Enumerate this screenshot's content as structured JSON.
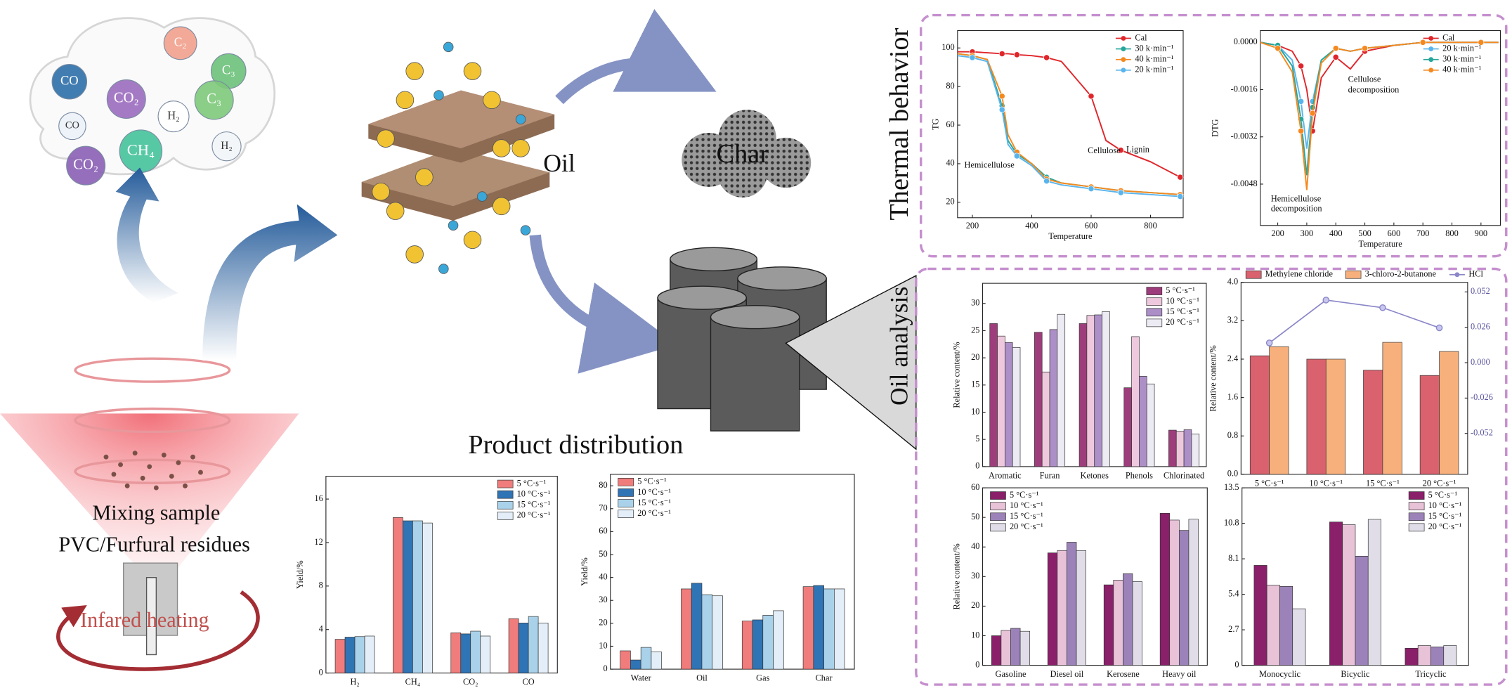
{
  "illustration": {
    "gases": [
      "CO",
      "C₂",
      "C₃",
      "CO₂",
      "H₂",
      "C₃",
      "CH₄",
      "CO₂",
      "H₂",
      "CO"
    ],
    "oil": "Oil",
    "char": "Char",
    "sample": [
      "Mixing sample",
      "PVC/Furfural residues"
    ],
    "heating": "Infared heating"
  },
  "sections": {
    "product": "Product distribution",
    "thermal": "Thermal behavior",
    "oil_analysis": "Oil analysis"
  },
  "chart_data": [
    {
      "type": "line",
      "xlabel": "Temperature",
      "ylabel": "TG",
      "x": [
        150,
        200,
        250,
        300,
        320,
        350,
        400,
        450,
        500,
        600,
        650,
        700,
        800,
        900
      ],
      "xlim": [
        150,
        910
      ],
      "xticks": [
        200,
        400,
        600,
        800
      ],
      "ylim": [
        12,
        109
      ],
      "yticks": [
        20,
        40,
        60,
        80,
        100
      ],
      "legend": "upper right",
      "annotations": [
        "Hemicellulose",
        "Cellulose",
        "Lignin"
      ],
      "series": [
        {
          "name": "Cal",
          "color": "#e0262b",
          "values": [
            98,
            98,
            97.5,
            97,
            97,
            96.5,
            96,
            95,
            93,
            75,
            52,
            47,
            41,
            33
          ]
        },
        {
          "name": "30 k·min⁻¹",
          "color": "#26a69a",
          "values": [
            97,
            96,
            94,
            70,
            52,
            45,
            40,
            33,
            30,
            28,
            27,
            26,
            25,
            24
          ]
        },
        {
          "name": "40 k·min⁻¹",
          "color": "#f5891f",
          "values": [
            97,
            96,
            94,
            75,
            55,
            46,
            40,
            32,
            30,
            28,
            27,
            26,
            25,
            24
          ]
        },
        {
          "name": "20 k·min⁻¹",
          "color": "#5ab4ec",
          "values": [
            96,
            95,
            93,
            68,
            50,
            44,
            39,
            31,
            29,
            27,
            26,
            25,
            24,
            23
          ]
        }
      ]
    },
    {
      "type": "line",
      "xlabel": "Temperature",
      "ylabel": "DTG",
      "x": [
        140,
        200,
        250,
        280,
        300,
        320,
        350,
        400,
        450,
        500,
        600,
        700,
        800,
        900,
        960
      ],
      "xlim": [
        140,
        967
      ],
      "xticks": [
        200,
        300,
        400,
        500,
        600,
        700,
        800,
        900
      ],
      "ylim": [
        -0.0062,
        0.0004
      ],
      "yticks": [
        {
          "value": 0,
          "label": "0.0000"
        },
        {
          "value": -0.0016,
          "label": "-0.0016"
        },
        {
          "value": -0.0032,
          "label": "-0.0032"
        },
        {
          "value": -0.0048,
          "label": "-0.0048"
        }
      ],
      "legend": "upper right",
      "annotations": [
        "Cellulose",
        "decomposition",
        "Hemicellulose",
        "decomposition"
      ],
      "series": [
        {
          "name": "Cal",
          "color": "#e0262b",
          "values": [
            0,
            -0.0001,
            -0.0003,
            -0.0008,
            -0.0016,
            -0.003,
            -0.0012,
            -0.0005,
            -0.0009,
            -0.0003,
            -0.0001,
            0,
            0,
            0,
            0
          ]
        },
        {
          "name": "20 k·min⁻¹",
          "color": "#5ab4ec",
          "values": [
            0,
            -0.0001,
            -0.0006,
            -0.002,
            -0.0036,
            -0.002,
            -0.0006,
            -0.0002,
            -0.0003,
            -0.0002,
            -0.0001,
            0,
            0,
            0,
            0
          ]
        },
        {
          "name": "30 k·min⁻¹",
          "color": "#26a69a",
          "values": [
            0,
            -0.0001,
            -0.0008,
            -0.0026,
            -0.0045,
            -0.0022,
            -0.0006,
            -0.0002,
            -0.0003,
            -0.0002,
            -0.0001,
            0,
            0,
            0,
            0
          ]
        },
        {
          "name": "40 k·min⁻¹",
          "color": "#f5891f",
          "values": [
            0,
            -0.0002,
            -0.001,
            -0.003,
            -0.005,
            -0.0024,
            -0.0007,
            -0.0002,
            -0.0003,
            -0.0002,
            -0.0001,
            0,
            0,
            0,
            0
          ]
        }
      ]
    },
    {
      "type": "bar",
      "ylabel": "Relative content/%",
      "categories": [
        "Aromatic",
        "Furan",
        "Ketones",
        "Phenols",
        "Chlorinated"
      ],
      "ylim": [
        0,
        33.7
      ],
      "yticks": [
        0,
        5,
        10,
        15,
        20,
        25,
        30
      ],
      "legend": "upper right",
      "series": [
        {
          "name": "5 °C·s⁻¹",
          "color": "#9e3d7b",
          "values": [
            26.3,
            24.7,
            26.3,
            14.5,
            6.7
          ]
        },
        {
          "name": "10 °C·s⁻¹",
          "color": "#eec8dd",
          "values": [
            24,
            17.4,
            27.8,
            23.9,
            6.5
          ]
        },
        {
          "name": "15 °C·s⁻¹",
          "color": "#ad8fc8",
          "values": [
            22.8,
            25.2,
            27.9,
            16.6,
            6.8
          ]
        },
        {
          "name": "20 °C·s⁻¹",
          "color": "#eceaf2",
          "values": [
            21.9,
            28,
            28.5,
            15.2,
            6
          ]
        }
      ]
    },
    {
      "type": "bar",
      "ylabel": "Relative content/%",
      "categories": [
        "5 °C·s⁻¹",
        "10 °C·s⁻¹",
        "15 °C·s⁻¹",
        "20 °C·s⁻¹"
      ],
      "ylim": [
        0,
        4
      ],
      "yticks": [
        {
          "value": 0,
          "label": "0.0"
        },
        0.8,
        1.6,
        2.4,
        3.2,
        {
          "value": 4,
          "label": "4.0"
        }
      ],
      "y2lim": [
        -0.082,
        0.059
      ],
      "y2ticks": [
        -0.052,
        -0.026,
        {
          "value": 0,
          "label": "0.000"
        },
        0.026,
        0.052
      ],
      "legend": "top",
      "series": [
        {
          "name": "Methylene chloride",
          "color": "#d9626e",
          "values": [
            2.47,
            2.4,
            2.17,
            2.06
          ]
        },
        {
          "name": "3-chloro-2-butanone",
          "color": "#f7b07c",
          "values": [
            2.66,
            2.4,
            2.75,
            2.56
          ]
        },
        {
          "name": "HCl",
          "color": "#8a86c8",
          "axis": "y2",
          "values": [
            0.0145,
            0.046,
            0.0404,
            0.0256
          ]
        }
      ]
    },
    {
      "type": "bar",
      "ylabel": "Relative content/%",
      "categories": [
        "Gasoline",
        "Diesel oil",
        "Kerosene",
        "Heavy oil"
      ],
      "ylim": [
        0,
        60
      ],
      "yticks": [
        0,
        10,
        20,
        30,
        40,
        50,
        60
      ],
      "legend": "upper left",
      "series": [
        {
          "name": "5 °C·s⁻¹",
          "color": "#8a1f6a",
          "values": [
            10,
            38,
            27.2,
            51.4
          ]
        },
        {
          "name": "10 °C·s⁻¹",
          "color": "#e8c3d8",
          "values": [
            11.8,
            38.8,
            28.8,
            49.1
          ]
        },
        {
          "name": "15 °C·s⁻¹",
          "color": "#9b82b8",
          "values": [
            12.5,
            41.6,
            31,
            45.6
          ]
        },
        {
          "name": "20 °C·s⁻¹",
          "color": "#e0dde8",
          "values": [
            11.5,
            38.8,
            28.3,
            49.4
          ]
        }
      ]
    },
    {
      "type": "bar",
      "categories": [
        "Monocyclic",
        "Bicyclic",
        "Tricyclic"
      ],
      "ylim": [
        0,
        13.5
      ],
      "yticks": [
        0,
        2.7,
        5.4,
        8.1,
        10.8,
        13.5
      ],
      "legend": "upper right",
      "series": [
        {
          "name": "5 °C·s⁻¹",
          "color": "#8a1f6a",
          "values": [
            7.6,
            10.9,
            1.3
          ]
        },
        {
          "name": "10 °C·s⁻¹",
          "color": "#e8c3d8",
          "values": [
            6.1,
            10.7,
            1.5
          ]
        },
        {
          "name": "15 °C·s⁻¹",
          "color": "#9b82b8",
          "values": [
            6,
            8.3,
            1.4
          ]
        },
        {
          "name": "20 °C·s⁻¹",
          "color": "#e0dde8",
          "values": [
            4.3,
            11.1,
            1.5
          ]
        }
      ]
    },
    {
      "type": "bar",
      "ylabel": "Yield/%",
      "categories": [
        "H₂",
        "CH₄",
        "CO₂",
        "CO"
      ],
      "ylim": [
        0,
        18.1
      ],
      "yticks": [
        0,
        4,
        8,
        12,
        16
      ],
      "legend": "upper right",
      "series": [
        {
          "name": "5 °C·s⁻¹",
          "color": "#f07c7c",
          "values": [
            3.1,
            14.3,
            3.7,
            5
          ]
        },
        {
          "name": "10 °C·s⁻¹",
          "color": "#2f74b5",
          "values": [
            3.3,
            14,
            3.6,
            4.6
          ]
        },
        {
          "name": "15 °C·s⁻¹",
          "color": "#a9d2ea",
          "values": [
            3.35,
            14,
            3.85,
            5.2
          ]
        },
        {
          "name": "20 °C·s⁻¹",
          "color": "#e3eef8",
          "values": [
            3.4,
            13.8,
            3.4,
            4.6
          ]
        }
      ]
    },
    {
      "type": "bar",
      "ylabel": "Yield/%",
      "categories": [
        "Water",
        "Oil",
        "Gas",
        "Char"
      ],
      "ylim": [
        0,
        85
      ],
      "yticks": [
        0,
        10,
        20,
        30,
        40,
        50,
        60,
        70,
        80
      ],
      "legend": "upper left",
      "series": [
        {
          "name": "5 °C·s⁻¹",
          "color": "#f07c7c",
          "values": [
            8,
            35,
            21,
            36
          ]
        },
        {
          "name": "10 °C·s⁻¹",
          "color": "#2f74b5",
          "values": [
            4,
            37.5,
            21.5,
            36.5
          ]
        },
        {
          "name": "15 °C·s⁻¹",
          "color": "#a9d2ea",
          "values": [
            9.5,
            32.5,
            23.5,
            35
          ]
        },
        {
          "name": "20 °C·s⁻¹",
          "color": "#e3eef8",
          "values": [
            7.5,
            32,
            25.5,
            35
          ]
        }
      ]
    }
  ]
}
